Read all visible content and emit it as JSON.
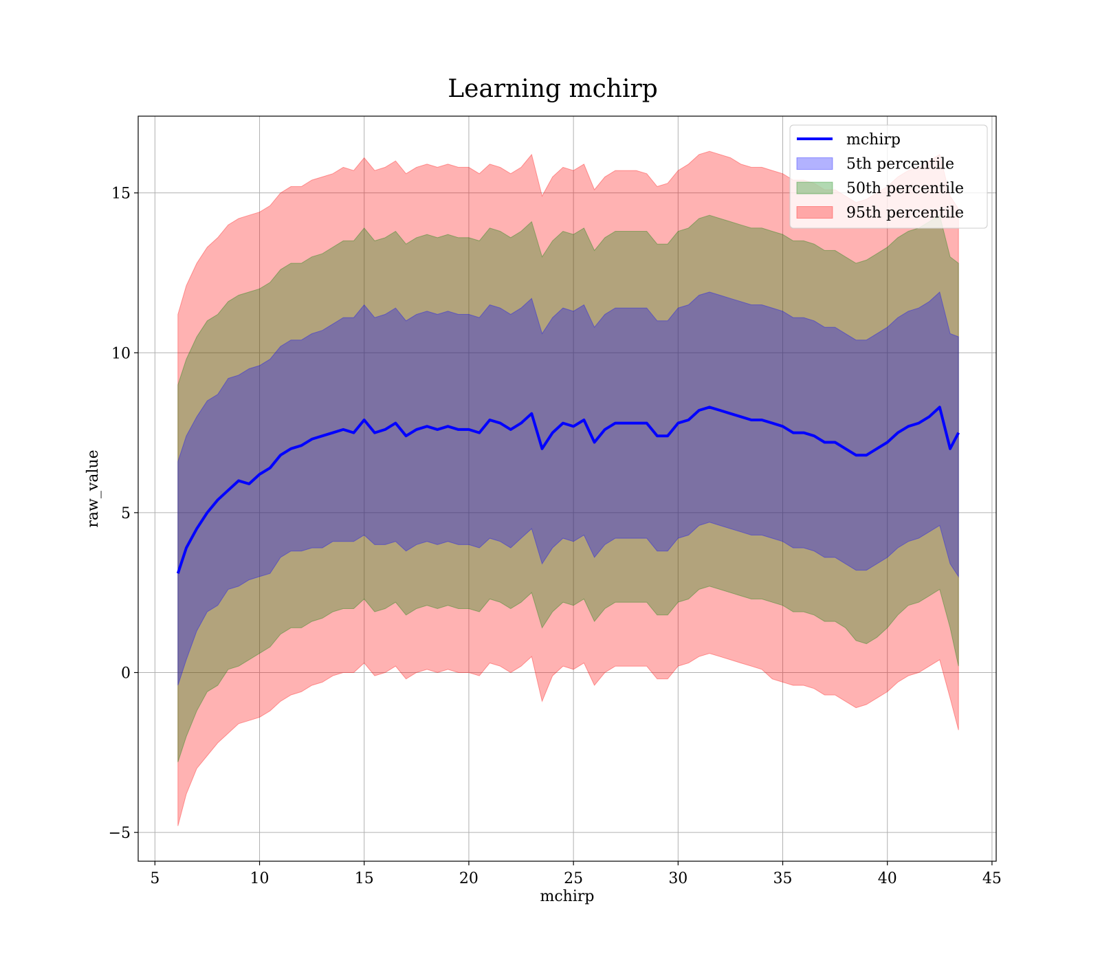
{
  "chart_data": {
    "type": "line",
    "title": "Learning mchirp",
    "xlabel": "mchirp",
    "ylabel": "raw_value",
    "xlim": [
      4.2,
      45.2
    ],
    "ylim": [
      -5.9,
      17.4
    ],
    "xticks": [
      5,
      10,
      15,
      20,
      25,
      30,
      35,
      40,
      45
    ],
    "xtick_labels": [
      "5",
      "10",
      "15",
      "20",
      "25",
      "30",
      "35",
      "40",
      "45"
    ],
    "yticks": [
      -5,
      0,
      5,
      10,
      15
    ],
    "ytick_labels": [
      "−5",
      "0",
      "5",
      "10",
      "15"
    ],
    "grid": true,
    "legend_position": "top-right",
    "x": [
      6.1,
      6.5,
      7,
      7.5,
      8,
      8.5,
      9,
      9.5,
      10,
      10.5,
      11,
      11.5,
      12,
      12.5,
      13,
      13.5,
      14,
      14.5,
      15,
      15.5,
      16,
      16.5,
      17,
      17.5,
      18,
      18.5,
      19,
      19.5,
      20,
      20.5,
      21,
      21.5,
      22,
      22.5,
      23,
      23.5,
      24,
      24.5,
      25,
      25.5,
      26,
      26.5,
      27,
      27.5,
      28,
      28.5,
      29,
      29.5,
      30,
      30.5,
      31,
      31.5,
      32,
      32.5,
      33,
      33.5,
      34,
      34.5,
      35,
      35.5,
      36,
      36.5,
      37,
      37.5,
      38,
      38.5,
      39,
      39.5,
      40,
      40.5,
      41,
      41.5,
      42,
      42.5,
      43,
      43.4
    ],
    "series": [
      {
        "name": "mchirp",
        "role": "line",
        "color": "#0000ff",
        "values": [
          3.1,
          3.9,
          4.5,
          5.0,
          5.4,
          5.7,
          6.0,
          5.9,
          6.2,
          6.4,
          6.8,
          7.0,
          7.1,
          7.3,
          7.4,
          7.5,
          7.6,
          7.5,
          7.9,
          7.5,
          7.6,
          7.8,
          7.4,
          7.6,
          7.7,
          7.6,
          7.7,
          7.6,
          7.6,
          7.5,
          7.9,
          7.8,
          7.6,
          7.8,
          8.1,
          7.0,
          7.5,
          7.8,
          7.7,
          7.9,
          7.2,
          7.6,
          7.8,
          7.8,
          7.8,
          7.8,
          7.4,
          7.4,
          7.8,
          7.9,
          8.2,
          8.3,
          8.2,
          8.1,
          8.0,
          7.9,
          7.9,
          7.8,
          7.7,
          7.5,
          7.5,
          7.4,
          7.2,
          7.2,
          7.0,
          6.8,
          6.8,
          7.0,
          7.2,
          7.5,
          7.7,
          7.8,
          8.0,
          8.3,
          7.0,
          7.5
        ]
      },
      {
        "name": "5th percentile",
        "role": "band",
        "color": "#0000ff",
        "lower": [
          -0.4,
          0.4,
          1.3,
          1.9,
          2.1,
          2.6,
          2.7,
          2.9,
          3.0,
          3.1,
          3.6,
          3.8,
          3.8,
          3.9,
          3.9,
          4.1,
          4.1,
          4.1,
          4.3,
          4.0,
          4.0,
          4.1,
          3.8,
          4.0,
          4.1,
          4.0,
          4.1,
          4.0,
          4.0,
          3.9,
          4.2,
          4.1,
          3.9,
          4.2,
          4.5,
          3.4,
          3.9,
          4.2,
          4.1,
          4.3,
          3.6,
          4.0,
          4.2,
          4.2,
          4.2,
          4.2,
          3.8,
          3.8,
          4.2,
          4.3,
          4.6,
          4.7,
          4.6,
          4.5,
          4.4,
          4.3,
          4.3,
          4.2,
          4.1,
          3.9,
          3.9,
          3.8,
          3.6,
          3.6,
          3.4,
          3.2,
          3.2,
          3.4,
          3.6,
          3.9,
          4.1,
          4.2,
          4.4,
          4.6,
          3.4,
          3.0
        ],
        "upper": [
          6.6,
          7.4,
          8.0,
          8.5,
          8.7,
          9.2,
          9.3,
          9.5,
          9.6,
          9.8,
          10.2,
          10.4,
          10.4,
          10.6,
          10.7,
          10.9,
          11.1,
          11.1,
          11.5,
          11.1,
          11.2,
          11.4,
          11.0,
          11.2,
          11.3,
          11.2,
          11.3,
          11.2,
          11.2,
          11.1,
          11.5,
          11.4,
          11.2,
          11.4,
          11.7,
          10.6,
          11.1,
          11.4,
          11.3,
          11.5,
          10.8,
          11.2,
          11.4,
          11.4,
          11.4,
          11.4,
          11.0,
          11.0,
          11.4,
          11.5,
          11.8,
          11.9,
          11.8,
          11.7,
          11.6,
          11.5,
          11.5,
          11.4,
          11.3,
          11.1,
          11.1,
          11.0,
          10.8,
          10.8,
          10.6,
          10.4,
          10.4,
          10.6,
          10.8,
          11.1,
          11.3,
          11.4,
          11.6,
          11.9,
          10.6,
          10.5
        ]
      },
      {
        "name": "50th percentile",
        "role": "band",
        "color": "#008000",
        "lower": [
          -2.8,
          -2.0,
          -1.2,
          -0.6,
          -0.4,
          0.1,
          0.2,
          0.4,
          0.6,
          0.8,
          1.2,
          1.4,
          1.4,
          1.6,
          1.7,
          1.9,
          2.0,
          2.0,
          2.3,
          1.9,
          2.0,
          2.2,
          1.8,
          2.0,
          2.1,
          2.0,
          2.1,
          2.0,
          2.0,
          1.9,
          2.3,
          2.2,
          2.0,
          2.2,
          2.5,
          1.4,
          1.9,
          2.2,
          2.1,
          2.3,
          1.6,
          2.0,
          2.2,
          2.2,
          2.2,
          2.2,
          1.8,
          1.8,
          2.2,
          2.3,
          2.6,
          2.7,
          2.6,
          2.5,
          2.4,
          2.3,
          2.3,
          2.2,
          2.1,
          1.9,
          1.9,
          1.8,
          1.6,
          1.6,
          1.4,
          1.0,
          0.9,
          1.1,
          1.4,
          1.8,
          2.1,
          2.2,
          2.4,
          2.6,
          1.4,
          0.2
        ],
        "upper": [
          9.0,
          9.8,
          10.5,
          11.0,
          11.2,
          11.6,
          11.8,
          11.9,
          12.0,
          12.2,
          12.6,
          12.8,
          12.8,
          13.0,
          13.1,
          13.3,
          13.5,
          13.5,
          13.9,
          13.5,
          13.6,
          13.8,
          13.4,
          13.6,
          13.7,
          13.6,
          13.7,
          13.6,
          13.6,
          13.5,
          13.9,
          13.8,
          13.6,
          13.8,
          14.1,
          13.0,
          13.5,
          13.8,
          13.7,
          13.9,
          13.2,
          13.6,
          13.8,
          13.8,
          13.8,
          13.8,
          13.4,
          13.4,
          13.8,
          13.9,
          14.2,
          14.3,
          14.2,
          14.1,
          14.0,
          13.9,
          13.9,
          13.8,
          13.7,
          13.5,
          13.5,
          13.4,
          13.2,
          13.2,
          13.0,
          12.8,
          12.9,
          13.1,
          13.3,
          13.6,
          13.8,
          13.9,
          14.1,
          14.3,
          13.0,
          12.8
        ]
      },
      {
        "name": "95th percentile",
        "role": "band",
        "color": "#ff0000",
        "lower": [
          -4.8,
          -3.8,
          -3.0,
          -2.6,
          -2.2,
          -1.9,
          -1.6,
          -1.5,
          -1.4,
          -1.2,
          -0.9,
          -0.7,
          -0.6,
          -0.4,
          -0.3,
          -0.1,
          0.0,
          0.0,
          0.3,
          -0.1,
          0.0,
          0.2,
          -0.2,
          0.0,
          0.1,
          0.0,
          0.1,
          0.0,
          0.0,
          -0.1,
          0.3,
          0.2,
          0.0,
          0.2,
          0.5,
          -0.9,
          -0.1,
          0.2,
          0.1,
          0.3,
          -0.4,
          0.0,
          0.2,
          0.2,
          0.2,
          0.2,
          -0.2,
          -0.2,
          0.2,
          0.3,
          0.5,
          0.6,
          0.5,
          0.4,
          0.3,
          0.2,
          0.1,
          -0.2,
          -0.3,
          -0.4,
          -0.4,
          -0.5,
          -0.7,
          -0.7,
          -0.9,
          -1.1,
          -1.0,
          -0.8,
          -0.6,
          -0.3,
          -0.1,
          0.0,
          0.2,
          0.4,
          -0.8,
          -1.8
        ],
        "upper": [
          11.2,
          12.1,
          12.8,
          13.3,
          13.6,
          14.0,
          14.2,
          14.3,
          14.4,
          14.6,
          15.0,
          15.2,
          15.2,
          15.4,
          15.5,
          15.6,
          15.8,
          15.7,
          16.1,
          15.7,
          15.8,
          16.0,
          15.6,
          15.8,
          15.9,
          15.8,
          15.9,
          15.8,
          15.8,
          15.6,
          15.9,
          15.8,
          15.6,
          15.8,
          16.2,
          14.9,
          15.5,
          15.8,
          15.7,
          15.9,
          15.1,
          15.5,
          15.7,
          15.7,
          15.7,
          15.6,
          15.2,
          15.3,
          15.7,
          15.9,
          16.2,
          16.3,
          16.2,
          16.1,
          15.9,
          15.8,
          15.8,
          15.7,
          15.6,
          15.4,
          15.4,
          15.3,
          15.1,
          15.1,
          14.9,
          14.7,
          14.8,
          15.0,
          15.2,
          15.5,
          15.7,
          15.8,
          16.0,
          16.2,
          14.9,
          14.5
        ]
      }
    ]
  }
}
